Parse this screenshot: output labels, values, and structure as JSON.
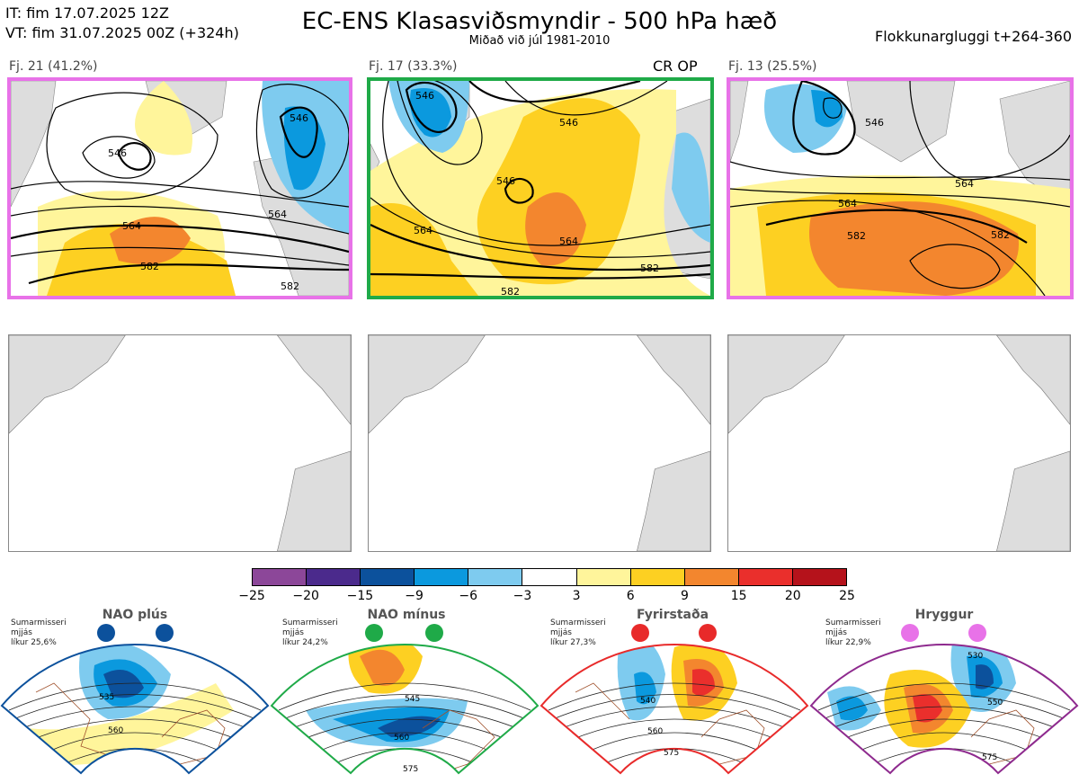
{
  "header": {
    "it_line": "IT: fim 17.07.2025 12Z",
    "vt_line": "VT: fim 31.07.2025 00Z  (+324h)",
    "title": "EC-ENS Klasasviðsmyndir - 500 hPa hæð",
    "subtitle": "Miðað við júl 1981-2010",
    "window": "Flokkunargluggi t+264-360"
  },
  "panels": [
    {
      "label": "Fj. 21 (41.2%)",
      "border_color": "#e872e8",
      "contours": [
        "546",
        "546",
        "564",
        "564",
        "582",
        "582"
      ]
    },
    {
      "label": "Fj. 17 (33.3%)",
      "border_color": "#1faa48",
      "tag": "CR OP",
      "contours": [
        "546",
        "546",
        "546",
        "564",
        "564",
        "582",
        "582"
      ]
    },
    {
      "label": "Fj. 13 (25.5%)",
      "border_color": "#e872e8",
      "contours": [
        "546",
        "564",
        "564",
        "582",
        "582"
      ]
    }
  ],
  "colorbar": {
    "colors": [
      "#8c4799",
      "#4b2a8c",
      "#0c519c",
      "#0b99de",
      "#7ecbef",
      "#ffffff",
      "#fff59b",
      "#fdd022",
      "#f3862e",
      "#ea2f2c",
      "#b5121b"
    ],
    "ticks": [
      "−25",
      "−20",
      "−15",
      "−9",
      "−6",
      "−3",
      "3",
      "6",
      "9",
      "15",
      "20",
      "25"
    ]
  },
  "regimes": [
    {
      "name": "NAO plús",
      "note": [
        "Sumarmisseri",
        "mjjás",
        "líkur 25,6%"
      ],
      "color": "#0c519c",
      "labels": [
        "535",
        "560"
      ]
    },
    {
      "name": "NAO mínus",
      "note": [
        "Sumarmisseri",
        "mjjás",
        "líkur 24,2%"
      ],
      "color": "#1faa48",
      "labels": [
        "545",
        "560",
        "575"
      ]
    },
    {
      "name": "Fyrirstaða",
      "note": [
        "Sumarmisseri",
        "mjjás",
        "líkur 27,3%"
      ],
      "color": "#e82a2a",
      "labels": [
        "540",
        "560",
        "575"
      ]
    },
    {
      "name": "Hryggur",
      "note": [
        "Sumarmisseri",
        "mjjás",
        "líkur 22,9%"
      ],
      "color": "#8e2a8e",
      "dot_color": "#e872e8",
      "labels": [
        "530",
        "550",
        "575"
      ]
    }
  ]
}
